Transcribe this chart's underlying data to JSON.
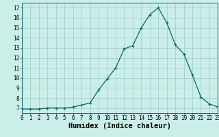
{
  "x": [
    0,
    1,
    2,
    3,
    4,
    5,
    6,
    7,
    8,
    9,
    10,
    11,
    12,
    13,
    14,
    15,
    16,
    17,
    18,
    19,
    20,
    21,
    22,
    23
  ],
  "y": [
    6.9,
    6.9,
    6.9,
    7.0,
    7.0,
    7.0,
    7.1,
    7.3,
    7.5,
    8.8,
    9.9,
    11.0,
    12.9,
    13.2,
    15.0,
    16.3,
    17.0,
    15.5,
    13.3,
    12.4,
    10.3,
    8.1,
    7.4,
    7.1
  ],
  "xlabel": "Humidex (Indice chaleur)",
  "ylim": [
    6.5,
    17.5
  ],
  "xlim": [
    0,
    23
  ],
  "yticks": [
    7,
    8,
    9,
    10,
    11,
    12,
    13,
    14,
    15,
    16,
    17
  ],
  "xticks": [
    0,
    1,
    2,
    3,
    4,
    5,
    6,
    7,
    8,
    9,
    10,
    11,
    12,
    13,
    14,
    15,
    16,
    17,
    18,
    19,
    20,
    21,
    22,
    23
  ],
  "line_color": "#006666",
  "marker": "+",
  "bg_color": "#cceee8",
  "grid_color": "#99cccc",
  "tick_fontsize": 5.5,
  "xlabel_fontsize": 7.5
}
